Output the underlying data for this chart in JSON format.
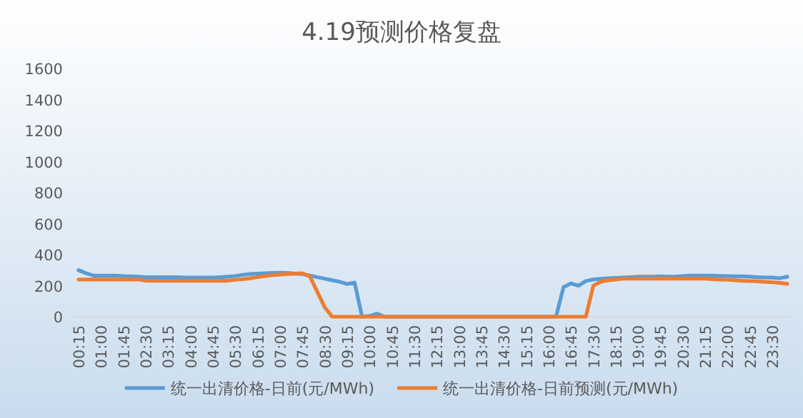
{
  "chart_data": {
    "type": "line",
    "title": "4.19预测价格复盘",
    "categories": [
      "00:15",
      null,
      null,
      "01:00",
      null,
      null,
      "01:45",
      null,
      null,
      "02:30",
      null,
      null,
      "03:15",
      null,
      null,
      "04:00",
      null,
      null,
      "04:45",
      null,
      null,
      "05:30",
      null,
      null,
      "06:15",
      null,
      null,
      "07:00",
      null,
      null,
      "07:45",
      null,
      null,
      "08:30",
      null,
      null,
      "09:15",
      null,
      null,
      "10:00",
      null,
      null,
      "10:45",
      null,
      null,
      "11:30",
      null,
      null,
      "12:15",
      null,
      null,
      "13:00",
      null,
      null,
      "13:45",
      null,
      null,
      "14:30",
      null,
      null,
      "15:15",
      null,
      null,
      "16:00",
      null,
      null,
      "16:45",
      null,
      null,
      "17:30",
      null,
      null,
      "18:15",
      null,
      null,
      "19:00",
      null,
      null,
      "19:45",
      null,
      null,
      "20:30",
      null,
      null,
      "21:15",
      null,
      null,
      "22:00",
      null,
      null,
      "22:45",
      null,
      null,
      "23:30",
      null,
      null
    ],
    "series": [
      {
        "name": "统一出清价格-日前(元/MWh)",
        "color": "#5b9bd5",
        "values": [
          300,
          280,
          265,
          265,
          265,
          265,
          262,
          260,
          258,
          255,
          255,
          255,
          255,
          255,
          253,
          252,
          252,
          252,
          252,
          255,
          258,
          262,
          270,
          275,
          278,
          280,
          282,
          283,
          282,
          278,
          275,
          265,
          255,
          245,
          235,
          225,
          210,
          220,
          0,
          5,
          20,
          0,
          0,
          0,
          0,
          0,
          0,
          0,
          0,
          0,
          0,
          0,
          0,
          0,
          0,
          0,
          0,
          0,
          0,
          0,
          0,
          0,
          0,
          0,
          0,
          190,
          215,
          200,
          230,
          240,
          245,
          248,
          250,
          252,
          255,
          258,
          258,
          258,
          260,
          258,
          258,
          262,
          265,
          265,
          265,
          265,
          263,
          262,
          260,
          260,
          258,
          255,
          253,
          252,
          248,
          258
        ]
      },
      {
        "name": "统一出清价格-日前预测(元/MWh)",
        "color": "#ed7d31",
        "values": [
          240,
          240,
          240,
          240,
          240,
          240,
          240,
          240,
          240,
          232,
          232,
          232,
          232,
          232,
          232,
          232,
          232,
          232,
          232,
          232,
          232,
          238,
          242,
          248,
          255,
          262,
          268,
          272,
          275,
          278,
          280,
          260,
          160,
          60,
          0,
          0,
          0,
          0,
          0,
          0,
          0,
          0,
          0,
          0,
          0,
          0,
          0,
          0,
          0,
          0,
          0,
          0,
          0,
          0,
          0,
          0,
          0,
          0,
          0,
          0,
          0,
          0,
          0,
          0,
          0,
          0,
          0,
          0,
          0,
          200,
          225,
          235,
          240,
          245,
          245,
          245,
          245,
          245,
          245,
          245,
          245,
          245,
          245,
          245,
          245,
          242,
          240,
          238,
          235,
          232,
          230,
          228,
          225,
          222,
          218,
          212
        ]
      }
    ],
    "ylim": [
      0,
      1600
    ],
    "yticks": [
      0,
      200,
      400,
      600,
      800,
      1000,
      1200,
      1400,
      1600
    ],
    "legend": "bottom",
    "marker": "none",
    "line_style": "solid"
  }
}
